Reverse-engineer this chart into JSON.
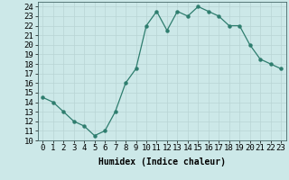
{
  "x": [
    0,
    1,
    2,
    3,
    4,
    5,
    6,
    7,
    8,
    9,
    10,
    11,
    12,
    13,
    14,
    15,
    16,
    17,
    18,
    19,
    20,
    21,
    22,
    23
  ],
  "y": [
    14.5,
    14.0,
    13.0,
    12.0,
    11.5,
    10.5,
    11.0,
    13.0,
    16.0,
    17.5,
    22.0,
    23.5,
    21.5,
    23.5,
    23.0,
    24.0,
    23.5,
    23.0,
    22.0,
    22.0,
    20.0,
    18.5,
    18.0,
    17.5
  ],
  "xlabel": "Humidex (Indice chaleur)",
  "xlim": [
    -0.5,
    23.5
  ],
  "ylim": [
    10,
    24.5
  ],
  "yticks": [
    10,
    11,
    12,
    13,
    14,
    15,
    16,
    17,
    18,
    19,
    20,
    21,
    22,
    23,
    24
  ],
  "xticks": [
    0,
    1,
    2,
    3,
    4,
    5,
    6,
    7,
    8,
    9,
    10,
    11,
    12,
    13,
    14,
    15,
    16,
    17,
    18,
    19,
    20,
    21,
    22,
    23
  ],
  "line_color": "#2e7d6e",
  "marker_color": "#2e7d6e",
  "bg_color": "#cce8e8",
  "grid_color": "#b8d4d4",
  "label_fontsize": 7,
  "tick_fontsize": 6.5
}
